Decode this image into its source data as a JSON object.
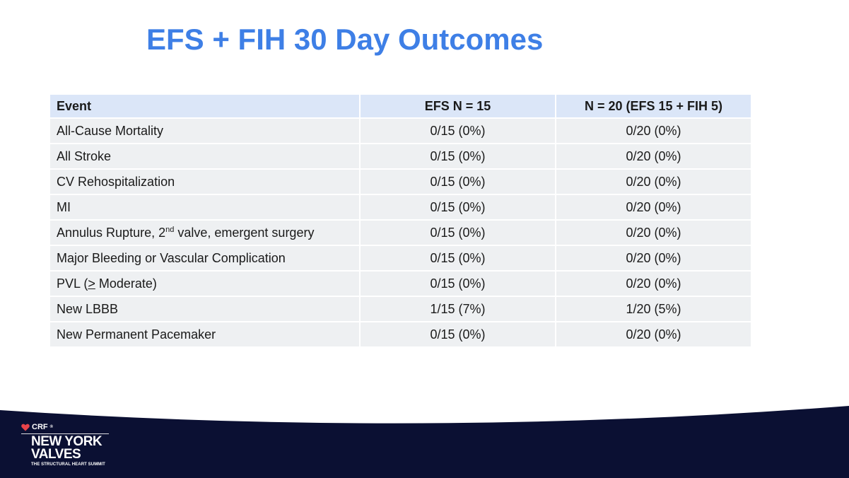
{
  "slide": {
    "title": "EFS + FIH 30 Day Outcomes"
  },
  "table": {
    "headers": [
      "Event",
      "EFS N = 15",
      "N = 20 (EFS 15 + FIH 5)"
    ],
    "rows": [
      {
        "event": "All-Cause Mortality",
        "efs": "0/15 (0%)",
        "combined": "0/20 (0%)"
      },
      {
        "event": "All Stroke",
        "efs": "0/15 (0%)",
        "combined": "0/20 (0%)"
      },
      {
        "event": "CV Rehospitalization",
        "efs": "0/15 (0%)",
        "combined": "0/20 (0%)"
      },
      {
        "event": "MI",
        "efs": "0/15 (0%)",
        "combined": "0/20 (0%)"
      },
      {
        "event_pre": "Annulus Rupture, 2",
        "event_sup": "nd",
        "event_post": " valve, emergent surgery",
        "efs": "0/15 (0%)",
        "combined": "0/20 (0%)"
      },
      {
        "event": "Major Bleeding or Vascular Complication",
        "efs": "0/15 (0%)",
        "combined": "0/20 (0%)"
      },
      {
        "event_pre": "PVL  (",
        "event_ge": ">",
        "event_post": " Moderate)",
        "efs": "0/15 (0%)",
        "combined": "0/20 (0%)"
      },
      {
        "event": "New LBBB",
        "efs": "1/15 (7%)",
        "combined": "1/20 (5%)"
      },
      {
        "event": "New Permanent Pacemaker",
        "efs": "0/15 (0%)",
        "combined": "0/20 (0%)"
      }
    ]
  },
  "footer": {
    "brand_small": "CRF",
    "brand_reg": "®",
    "brand_line1": "NEW YORK",
    "brand_line2": "VALVES",
    "brand_tagline": "THE STRUCTURAL HEART SUMMIT",
    "background_color": "#0b1033",
    "brand_icon_color": "#e8434a",
    "title_color": "#3e7fe6"
  }
}
